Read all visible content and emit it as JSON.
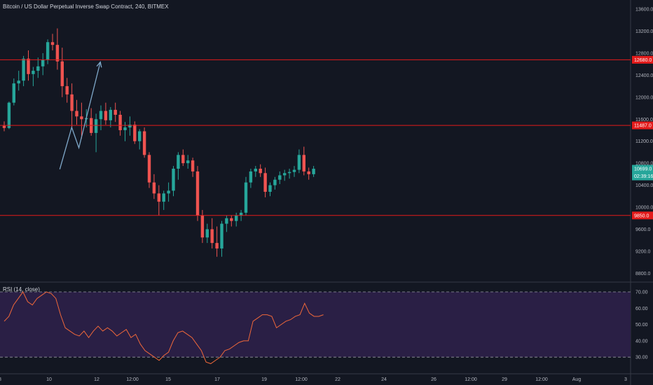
{
  "header": {
    "title": "Bitcoin / US Dollar Perpetual Inverse Swap Contract, 240, BITMEX"
  },
  "rsi_panel": {
    "label": "RSI (14, close)"
  },
  "colors": {
    "background": "#131722",
    "up": "#26a69a",
    "down": "#ef5350",
    "level_line": "#e31b1b",
    "arrow": "#7fa8c9",
    "rsi_line": "#f0683a",
    "rsi_band": "#2a1f45",
    "grid_text": "#b2b5be"
  },
  "chart_data": [
    {
      "type": "candlestick",
      "title": "Bitcoin / US Dollar Perpetual Inverse Swap Contract, 240, BITMEX",
      "x_ticks": [
        "8",
        "10",
        "12",
        "12:00",
        "15",
        "17",
        "19",
        "12:00",
        "22",
        "24",
        "26",
        "12:00",
        "29",
        "12:00",
        "Aug",
        "3"
      ],
      "y_ticks": [
        8800.0,
        9200.0,
        9600.0,
        10000.0,
        10400.0,
        10800.0,
        11200.0,
        11600.0,
        12000.0,
        12400.0,
        12800.0,
        13200.0,
        13600.0
      ],
      "ylim": [
        8600,
        13800
      ],
      "horizontal_levels": [
        12680.0,
        11487.0,
        9850.0
      ],
      "current_price": 10699.0,
      "countdown": "02:39:16",
      "candles": [
        {
          "o": 11480,
          "h": 11560,
          "l": 11380,
          "c": 11440
        },
        {
          "o": 11440,
          "h": 11920,
          "l": 11420,
          "c": 11900
        },
        {
          "o": 11900,
          "h": 12340,
          "l": 11850,
          "c": 12250
        },
        {
          "o": 12250,
          "h": 12480,
          "l": 12120,
          "c": 12300
        },
        {
          "o": 12300,
          "h": 12750,
          "l": 12200,
          "c": 12700
        },
        {
          "o": 12700,
          "h": 12850,
          "l": 12300,
          "c": 12420
        },
        {
          "o": 12420,
          "h": 12550,
          "l": 12200,
          "c": 12480
        },
        {
          "o": 12480,
          "h": 12720,
          "l": 12350,
          "c": 12560
        },
        {
          "o": 12560,
          "h": 12800,
          "l": 12400,
          "c": 12680
        },
        {
          "o": 12680,
          "h": 13050,
          "l": 12600,
          "c": 13000
        },
        {
          "o": 13000,
          "h": 13150,
          "l": 12850,
          "c": 12950
        },
        {
          "o": 12950,
          "h": 13250,
          "l": 12500,
          "c": 12650
        },
        {
          "o": 12650,
          "h": 12900,
          "l": 12000,
          "c": 12200
        },
        {
          "o": 12200,
          "h": 12350,
          "l": 11900,
          "c": 12050
        },
        {
          "o": 12050,
          "h": 12250,
          "l": 11450,
          "c": 11750
        },
        {
          "o": 11750,
          "h": 11950,
          "l": 11500,
          "c": 11650
        },
        {
          "o": 11650,
          "h": 11900,
          "l": 11250,
          "c": 11600
        },
        {
          "o": 11600,
          "h": 11780,
          "l": 11450,
          "c": 11620
        },
        {
          "o": 11620,
          "h": 11800,
          "l": 11300,
          "c": 11350
        },
        {
          "o": 11350,
          "h": 11700,
          "l": 11000,
          "c": 11600
        },
        {
          "o": 11600,
          "h": 11850,
          "l": 11400,
          "c": 11750
        },
        {
          "o": 11750,
          "h": 11900,
          "l": 11500,
          "c": 11580
        },
        {
          "o": 11580,
          "h": 11820,
          "l": 11450,
          "c": 11770
        },
        {
          "o": 11770,
          "h": 11900,
          "l": 11550,
          "c": 11680
        },
        {
          "o": 11680,
          "h": 11750,
          "l": 11300,
          "c": 11400
        },
        {
          "o": 11400,
          "h": 11550,
          "l": 11200,
          "c": 11450
        },
        {
          "o": 11450,
          "h": 11650,
          "l": 11300,
          "c": 11500
        },
        {
          "o": 11500,
          "h": 11560,
          "l": 11150,
          "c": 11200
        },
        {
          "o": 11200,
          "h": 11420,
          "l": 11050,
          "c": 11380
        },
        {
          "o": 11380,
          "h": 11450,
          "l": 10900,
          "c": 10950
        },
        {
          "o": 10950,
          "h": 11000,
          "l": 10350,
          "c": 10450
        },
        {
          "o": 10450,
          "h": 10600,
          "l": 10150,
          "c": 10250
        },
        {
          "o": 10250,
          "h": 10400,
          "l": 9850,
          "c": 10100
        },
        {
          "o": 10100,
          "h": 10300,
          "l": 9950,
          "c": 10250
        },
        {
          "o": 10250,
          "h": 10450,
          "l": 10100,
          "c": 10300
        },
        {
          "o": 10300,
          "h": 10750,
          "l": 10200,
          "c": 10700
        },
        {
          "o": 10700,
          "h": 11000,
          "l": 10500,
          "c": 10950
        },
        {
          "o": 10950,
          "h": 11050,
          "l": 10750,
          "c": 10800
        },
        {
          "o": 10800,
          "h": 10950,
          "l": 10700,
          "c": 10850
        },
        {
          "o": 10850,
          "h": 10900,
          "l": 10550,
          "c": 10650
        },
        {
          "o": 10650,
          "h": 10750,
          "l": 9750,
          "c": 9850
        },
        {
          "o": 9850,
          "h": 9950,
          "l": 9350,
          "c": 9450
        },
        {
          "o": 9450,
          "h": 9700,
          "l": 9350,
          "c": 9600
        },
        {
          "o": 9600,
          "h": 9800,
          "l": 9250,
          "c": 9350
        },
        {
          "o": 9350,
          "h": 9650,
          "l": 9100,
          "c": 9250
        },
        {
          "o": 9250,
          "h": 9750,
          "l": 9100,
          "c": 9700
        },
        {
          "o": 9700,
          "h": 9850,
          "l": 9550,
          "c": 9800
        },
        {
          "o": 9800,
          "h": 9850,
          "l": 9650,
          "c": 9750
        },
        {
          "o": 9750,
          "h": 9900,
          "l": 9650,
          "c": 9850
        },
        {
          "o": 9850,
          "h": 9950,
          "l": 9750,
          "c": 9900
        },
        {
          "o": 9900,
          "h": 10550,
          "l": 9850,
          "c": 10450
        },
        {
          "o": 10450,
          "h": 10700,
          "l": 10350,
          "c": 10650
        },
        {
          "o": 10650,
          "h": 10750,
          "l": 10550,
          "c": 10700
        },
        {
          "o": 10700,
          "h": 10780,
          "l": 10550,
          "c": 10620
        },
        {
          "o": 10620,
          "h": 10720,
          "l": 10180,
          "c": 10280
        },
        {
          "o": 10280,
          "h": 10450,
          "l": 10200,
          "c": 10400
        },
        {
          "o": 10400,
          "h": 10550,
          "l": 10320,
          "c": 10500
        },
        {
          "o": 10500,
          "h": 10650,
          "l": 10420,
          "c": 10580
        },
        {
          "o": 10580,
          "h": 10680,
          "l": 10480,
          "c": 10620
        },
        {
          "o": 10620,
          "h": 10700,
          "l": 10520,
          "c": 10640
        },
        {
          "o": 10640,
          "h": 10750,
          "l": 10550,
          "c": 10680
        },
        {
          "o": 10680,
          "h": 11050,
          "l": 10620,
          "c": 10950
        },
        {
          "o": 10950,
          "h": 11100,
          "l": 10580,
          "c": 10650
        },
        {
          "o": 10650,
          "h": 10720,
          "l": 10500,
          "c": 10600
        },
        {
          "o": 10600,
          "h": 10750,
          "l": 10550,
          "c": 10699
        }
      ],
      "projection_arrow": [
        {
          "x": 10.45,
          "y": 10690
        },
        {
          "x": 10.95,
          "y": 11450
        },
        {
          "x": 11.25,
          "y": 11080
        },
        {
          "x": 12.15,
          "y": 12640
        }
      ]
    },
    {
      "type": "line",
      "title": "RSI (14, close)",
      "y_ticks": [
        30.0,
        40.0,
        50.0,
        60.0,
        70.0
      ],
      "ylim": [
        20,
        75
      ],
      "band": [
        30,
        70
      ],
      "values": [
        52,
        55,
        62,
        66,
        70,
        64,
        62,
        66,
        68,
        70,
        69,
        66,
        56,
        48,
        46,
        44,
        43,
        46,
        42,
        46,
        49,
        46,
        48,
        46,
        43,
        45,
        47,
        42,
        44,
        38,
        34,
        32,
        30,
        28,
        31,
        33,
        40,
        45,
        46,
        44,
        42,
        38,
        34,
        27,
        26,
        28,
        30,
        34,
        35,
        37,
        39,
        40,
        40,
        52,
        54,
        56,
        56,
        55,
        48,
        50,
        52,
        53,
        55,
        56,
        63,
        57,
        55,
        55,
        56
      ]
    }
  ]
}
